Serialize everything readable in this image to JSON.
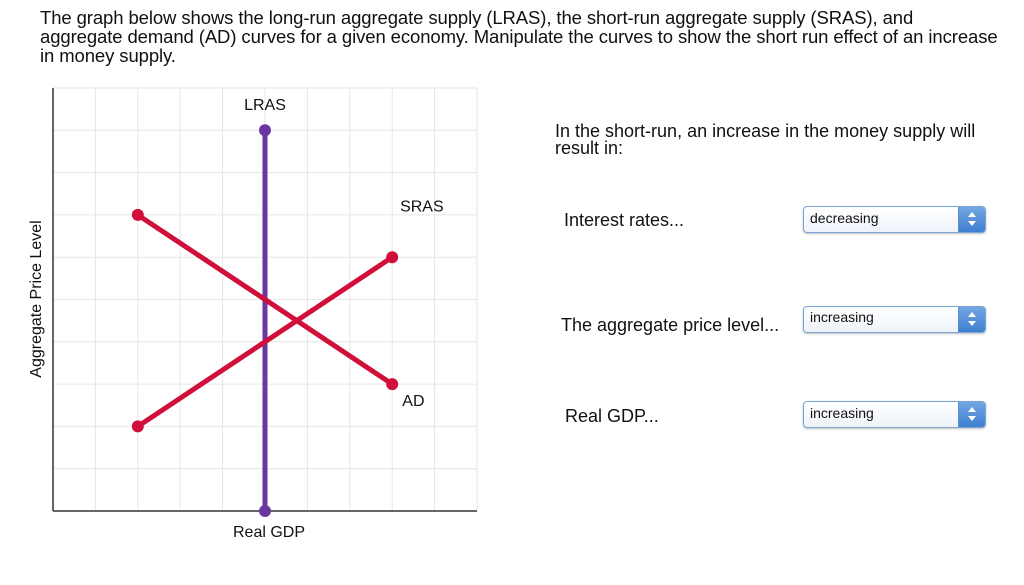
{
  "instructions": "The graph below shows the long-run aggregate supply (LRAS), the short-run aggregate supply (SRAS), and aggregate demand (AD) curves for a given economy. Manipulate the curves to show the short run effect of an increase in money supply.",
  "chart_data": {
    "type": "line",
    "title": "",
    "xlabel": "Real GDP",
    "ylabel": "Aggregate Price Level",
    "grid": true,
    "grid_divisions": {
      "x": 10,
      "y": 10
    },
    "xlim": [
      0,
      10
    ],
    "ylim": [
      0,
      10
    ],
    "tick_labels": {
      "x": [],
      "y": []
    },
    "legend": "inline labels",
    "series": [
      {
        "name": "LRAS",
        "color": "#6a36a0",
        "points": [
          [
            5,
            9
          ],
          [
            5,
            0
          ]
        ],
        "label_pos": [
          5,
          9.6
        ]
      },
      {
        "name": "SRAS",
        "color": "#d0103a",
        "points": [
          [
            2,
            2
          ],
          [
            8,
            6
          ]
        ],
        "label_pos": [
          8.7,
          7.2
        ]
      },
      {
        "name": "AD",
        "color": "#d0103a",
        "points": [
          [
            2,
            7
          ],
          [
            8,
            3
          ]
        ],
        "label_pos": [
          8.5,
          2.6
        ]
      }
    ],
    "intersection": [
      5,
      5
    ]
  },
  "question": {
    "prompt": "In the short-run, an increase in the money supply will result in:",
    "rows": [
      {
        "label": "Interest rates...",
        "selected": "decreasing"
      },
      {
        "label": "The aggregate price level...",
        "selected": "increasing"
      },
      {
        "label": "Real GDP...",
        "selected": "increasing"
      }
    ]
  },
  "colors": {
    "supply_demand": "#d0103a",
    "lras": "#6a36a0",
    "select_accent": "#4a88d6",
    "grid": "#e6e6e6",
    "axis": "#333333"
  }
}
